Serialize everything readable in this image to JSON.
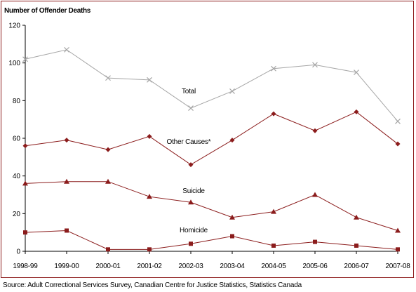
{
  "chart_data": {
    "type": "line",
    "ylabel": "Number of Offender Deaths",
    "categories": [
      "1998-99",
      "1999-00",
      "2000-01",
      "2001-02",
      "2002-03",
      "2003-04",
      "2004-05",
      "2005-06",
      "2006-07",
      "2007-08"
    ],
    "ylim": [
      0,
      120
    ],
    "yticks": [
      0,
      20,
      40,
      60,
      80,
      100,
      120
    ],
    "grid": false,
    "series": [
      {
        "name": "Total",
        "marker": "x",
        "color": "#a6a6a6",
        "values": [
          102,
          107,
          92,
          91,
          76,
          85,
          97,
          99,
          95,
          69
        ]
      },
      {
        "name": "Other Causes*",
        "marker": "diamond",
        "color": "#8b1c1c",
        "values": [
          56,
          59,
          54,
          61,
          46,
          59,
          73,
          64,
          74,
          57
        ]
      },
      {
        "name": "Suicide",
        "marker": "triangle",
        "color": "#8b1c1c",
        "values": [
          36,
          37,
          37,
          29,
          26,
          18,
          21,
          30,
          18,
          11
        ]
      },
      {
        "name": "Homicide",
        "marker": "square",
        "color": "#8b1c1c",
        "values": [
          10,
          11,
          1,
          1,
          4,
          8,
          3,
          5,
          3,
          1
        ]
      }
    ]
  },
  "source": "Source:  Adult Correctional Services Survey, Canadian Centre for Justice Statistics, Statistics Canada"
}
